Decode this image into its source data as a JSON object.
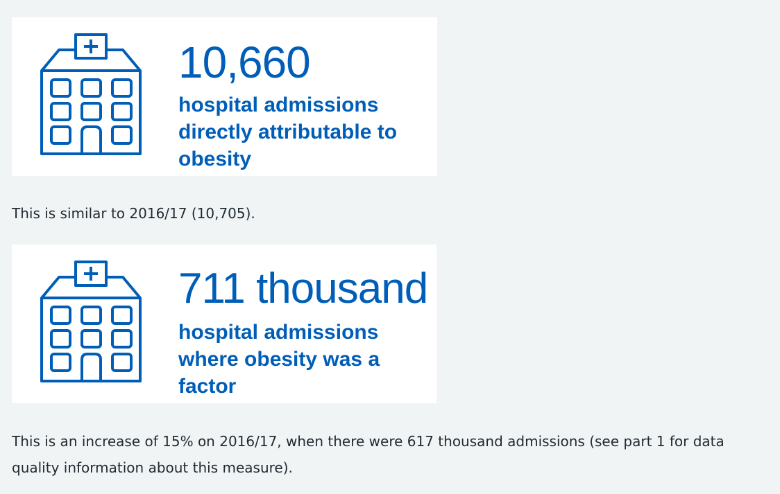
{
  "stat1": {
    "icon": "hospital-icon",
    "value": "10,660",
    "description": "hospital admissions directly attributable to obesity"
  },
  "paragraph1": "This is similar to 2016/17 (10,705).",
  "stat2": {
    "icon": "hospital-icon",
    "value": "711 thousand",
    "description": "hospital admissions where obesity was a factor"
  },
  "paragraph2": "This is an increase of 15% on 2016/17, when there were 617 thousand admissions (see part 1 for data quality information about this measure).",
  "colors": {
    "accent": "#005eb8",
    "background": "#f0f4f5",
    "card": "#ffffff",
    "text": "#212b32"
  }
}
